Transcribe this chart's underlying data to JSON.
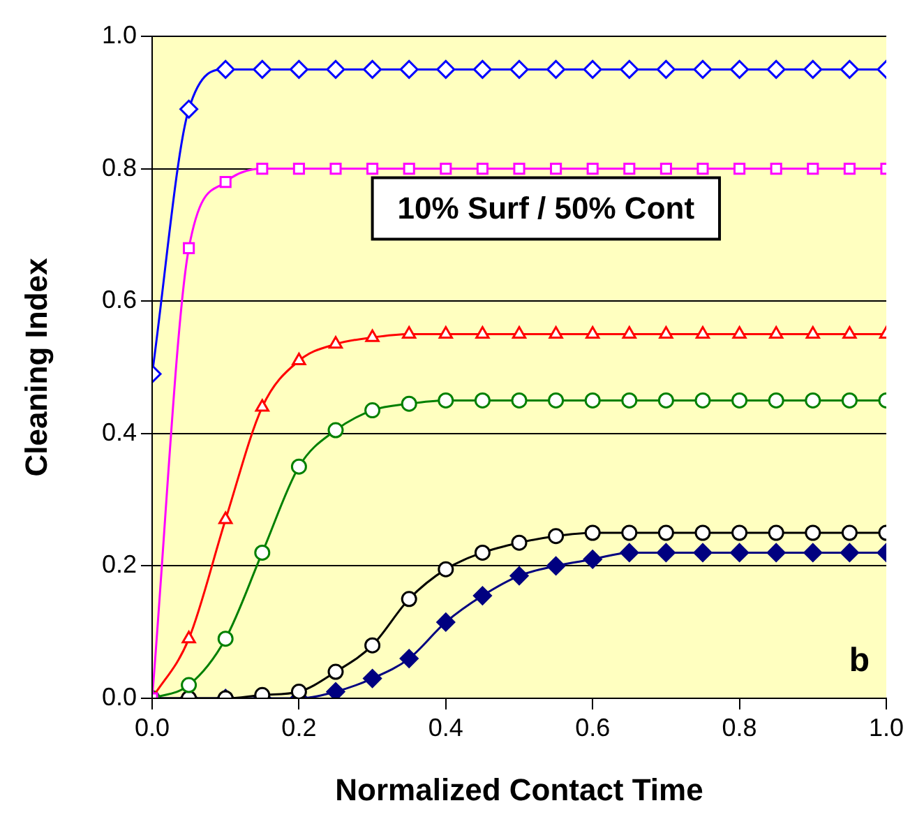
{
  "chart_data": {
    "type": "line",
    "xlabel": "Normalized Contact Time",
    "ylabel": "Cleaning Index",
    "x": [
      0,
      0.05,
      0.1,
      0.15,
      0.2,
      0.25,
      0.3,
      0.35,
      0.4,
      0.45,
      0.5,
      0.55,
      0.6,
      0.65,
      0.7,
      0.75,
      0.8,
      0.85,
      0.9,
      0.95,
      1.0
    ],
    "series": [
      {
        "color": "#0000ff",
        "marker": "diamond",
        "values": [
          0.49,
          0.89,
          0.95,
          0.95,
          0.95,
          0.95,
          0.95,
          0.95,
          0.95,
          0.95,
          0.95,
          0.95,
          0.95,
          0.95,
          0.95,
          0.95,
          0.95,
          0.95,
          0.95,
          0.95,
          0.95
        ]
      },
      {
        "color": "#ff00ff",
        "marker": "square",
        "values": [
          0,
          0.68,
          0.78,
          0.8,
          0.8,
          0.8,
          0.8,
          0.8,
          0.8,
          0.8,
          0.8,
          0.8,
          0.8,
          0.8,
          0.8,
          0.8,
          0.8,
          0.8,
          0.8,
          0.8,
          0.8
        ]
      },
      {
        "color": "#ff0000",
        "marker": "triangle",
        "values": [
          0,
          0.09,
          0.27,
          0.44,
          0.51,
          0.535,
          0.545,
          0.55,
          0.55,
          0.55,
          0.55,
          0.55,
          0.55,
          0.55,
          0.55,
          0.55,
          0.55,
          0.55,
          0.55,
          0.55,
          0.55
        ]
      },
      {
        "color": "#008000",
        "marker": "circle",
        "values": [
          0,
          0.02,
          0.09,
          0.22,
          0.35,
          0.405,
          0.435,
          0.445,
          0.45,
          0.45,
          0.45,
          0.45,
          0.45,
          0.45,
          0.45,
          0.45,
          0.45,
          0.45,
          0.45,
          0.45,
          0.45
        ]
      },
      {
        "color": "#000000",
        "marker": "circle",
        "values": [
          0,
          0,
          0,
          0.005,
          0.01,
          0.04,
          0.08,
          0.15,
          0.195,
          0.22,
          0.235,
          0.245,
          0.25,
          0.25,
          0.25,
          0.25,
          0.25,
          0.25,
          0.25,
          0.25,
          0.25
        ]
      },
      {
        "color": "#000080",
        "marker": "diamond",
        "values": [
          0,
          0,
          0,
          0,
          0,
          0.01,
          0.03,
          0.06,
          0.115,
          0.155,
          0.185,
          0.2,
          0.21,
          0.22,
          0.22,
          0.22,
          0.22,
          0.22,
          0.22,
          0.22,
          0.22
        ]
      }
    ],
    "xlim": [
      0,
      1
    ],
    "ylim": [
      0,
      1
    ],
    "xticks": [
      {
        "value": 0,
        "label": "0.0"
      },
      {
        "value": 0.2,
        "label": "0.2"
      },
      {
        "value": 0.4,
        "label": "0.4"
      },
      {
        "value": 0.6,
        "label": "0.6"
      },
      {
        "value": 0.8,
        "label": "0.8"
      },
      {
        "value": 1,
        "label": "1.0"
      }
    ],
    "yticks": [
      {
        "value": 0,
        "label": "0.0"
      },
      {
        "value": 0.2,
        "label": "0.2"
      },
      {
        "value": 0.4,
        "label": "0.4"
      },
      {
        "value": 0.6,
        "label": "0.6"
      },
      {
        "value": 0.8,
        "label": "0.8"
      },
      {
        "value": 1,
        "label": "1.0"
      }
    ],
    "grid": "y",
    "legend": false,
    "annotations": [
      "10% Surf / 50% Cont",
      "b"
    ]
  }
}
